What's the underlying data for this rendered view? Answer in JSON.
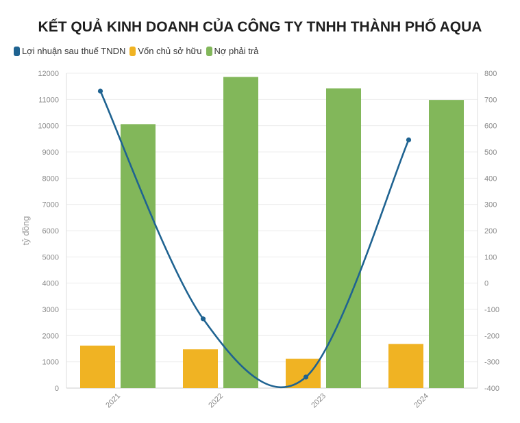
{
  "chart_data": {
    "type": "bar",
    "title": "KẾT QUẢ KINH DOANH CỦA CÔNG TY TNHH THÀNH PHỐ AQUA",
    "categories": [
      "2021",
      "2022",
      "2023",
      "2024"
    ],
    "ylabel": "tỷ đồng",
    "ylim": [
      0,
      12000
    ],
    "y2lim": [
      -400,
      800
    ],
    "yticks": [
      "0",
      "1000",
      "2000",
      "3000",
      "4000",
      "5000",
      "6000",
      "7000",
      "8000",
      "9000",
      "10000",
      "11000",
      "12000"
    ],
    "y2ticks": [
      "-400",
      "-300",
      "-200",
      "-100",
      "0",
      "100",
      "200",
      "300",
      "400",
      "500",
      "600",
      "700",
      "800"
    ],
    "grid": true,
    "legend_position": "top-left",
    "series": [
      {
        "name": "Lợi nhuận sau thuế TNDN",
        "type": "line",
        "axis": "right",
        "color": "#1f6391",
        "values": [
          732,
          -136,
          -358,
          546
        ]
      },
      {
        "name": "Vốn chủ sở hữu",
        "type": "bar",
        "axis": "left",
        "color": "#f0b323",
        "values": [
          1620,
          1480,
          1120,
          1680
        ]
      },
      {
        "name": "Nợ phải trả",
        "type": "bar",
        "axis": "left",
        "color": "#82b75a",
        "values": [
          10060,
          11860,
          11420,
          10980
        ]
      }
    ]
  }
}
